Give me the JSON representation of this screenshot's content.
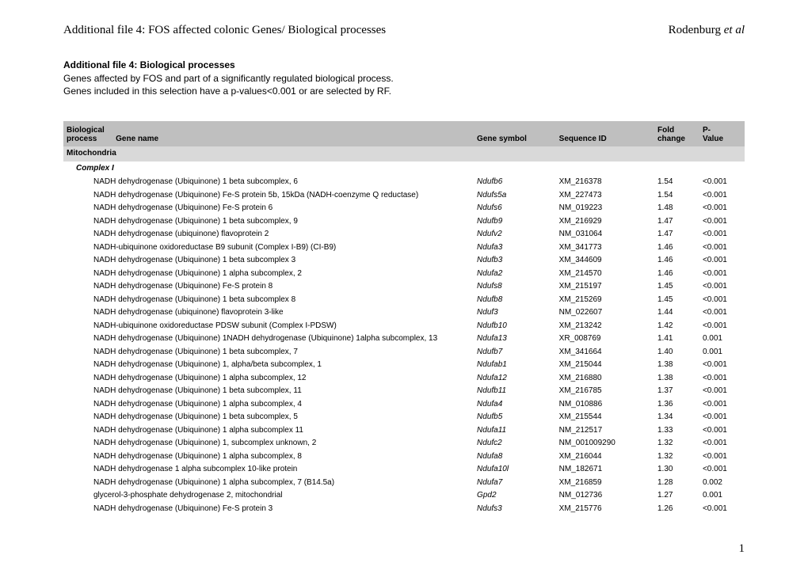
{
  "header": {
    "left": "Additional file 4: FOS affected colonic Genes/ Biological processes",
    "author": "Rodenburg ",
    "etal": "et al"
  },
  "section": {
    "title": "Additional file 4: Biological processes",
    "desc_line1": "Genes affected by FOS and part of a significantly regulated biological process.",
    "desc_line2": "Genes included in this selection have a p-values<0.001 or are selected by RF."
  },
  "columns": {
    "process_l1": "Biological",
    "process_l2": "process",
    "gene_name": "Gene name",
    "symbol": "Gene symbol",
    "seqid": "Sequence ID",
    "fold_l1": "Fold",
    "fold_l2": "change",
    "pval_l1": "P-",
    "pval_l2": "Value"
  },
  "group": "Mitochondria",
  "subgroup": "Complex I",
  "rows": [
    {
      "name": "NADH dehydrogenase (Ubiquinone) 1 beta subcomplex, 6",
      "sym": "Ndufb6",
      "seq": "XM_216378",
      "fold": "1.54",
      "p": "<0.001"
    },
    {
      "name": "NADH dehydrogenase (Ubiquinone) Fe-S protein 5b, 15kDa (NADH-coenzyme Q reductase)",
      "sym": "Ndufs5a",
      "seq": "XM_227473",
      "fold": "1.54",
      "p": "<0.001"
    },
    {
      "name": "NADH dehydrogenase (Ubiquinone) Fe-S protein 6",
      "sym": "Ndufs6",
      "seq": "NM_019223",
      "fold": "1.48",
      "p": "<0.001"
    },
    {
      "name": "NADH dehydrogenase (Ubiquinone) 1 beta subcomplex, 9",
      "sym": "Ndufb9",
      "seq": "XM_216929",
      "fold": "1.47",
      "p": "<0.001"
    },
    {
      "name": "NADH dehydrogenase (ubiquinone) flavoprotein 2",
      "sym": "Ndufv2",
      "seq": "NM_031064",
      "fold": "1.47",
      "p": "<0.001"
    },
    {
      "name": "NADH-ubiquinone oxidoreductase B9 subunit (Complex I-B9) (CI-B9)",
      "sym": "Ndufa3",
      "seq": "XM_341773",
      "fold": "1.46",
      "p": "<0.001"
    },
    {
      "name": "NADH dehydrogenase (Ubiquinone) 1 beta subcomplex 3",
      "sym": "Ndufb3",
      "seq": "XM_344609",
      "fold": "1.46",
      "p": "<0.001"
    },
    {
      "name": "NADH dehydrogenase (Ubiquinone) 1 alpha subcomplex, 2",
      "sym": "Ndufa2",
      "seq": "XM_214570",
      "fold": "1.46",
      "p": "<0.001"
    },
    {
      "name": "NADH dehydrogenase (Ubiquinone) Fe-S protein 8",
      "sym": "Ndufs8",
      "seq": "XM_215197",
      "fold": "1.45",
      "p": "<0.001"
    },
    {
      "name": "NADH dehydrogenase (Ubiquinone) 1 beta subcomplex 8",
      "sym": "Ndufb8",
      "seq": "XM_215269",
      "fold": "1.45",
      "p": "<0.001"
    },
    {
      "name": "NADH dehydrogenase (ubiquinone) flavoprotein 3-like",
      "sym": "Nduf3",
      "seq": "NM_022607",
      "fold": "1.44",
      "p": "<0.001"
    },
    {
      "name": "NADH-ubiquinone oxidoreductase PDSW subunit (Complex I-PDSW)",
      "sym": "Ndufb10",
      "seq": "XM_213242",
      "fold": "1.42",
      "p": "<0.001"
    },
    {
      "name": "NADH dehydrogenase (Ubiquinone) 1NADH dehydrogenase (Ubiquinone) 1alpha subcomplex, 13",
      "sym": "Ndufa13",
      "seq": "XR_008769",
      "fold": "1.41",
      "p": "0.001"
    },
    {
      "name": "NADH dehydrogenase (Ubiquinone) 1 beta subcomplex, 7",
      "sym": "Ndufb7",
      "seq": "XM_341664",
      "fold": "1.40",
      "p": "0.001"
    },
    {
      "name": "NADH dehydrogenase (Ubiquinone) 1, alpha/beta subcomplex, 1",
      "sym": "Ndufab1",
      "seq": "XM_215044",
      "fold": "1.38",
      "p": "<0.001"
    },
    {
      "name": "NADH dehydrogenase (Ubiquinone) 1 alpha subcomplex, 12",
      "sym": "Ndufa12",
      "seq": "XM_216880",
      "fold": "1.38",
      "p": "<0.001"
    },
    {
      "name": "NADH dehydrogenase (Ubiquinone) 1 beta subcomplex, 11",
      "sym": "Ndufb11",
      "seq": "XM_216785",
      "fold": "1.37",
      "p": "<0.001"
    },
    {
      "name": "NADH dehydrogenase (Ubiquinone) 1 alpha subcomplex, 4",
      "sym": "Ndufa4",
      "seq": "NM_010886",
      "fold": "1.36",
      "p": "<0.001"
    },
    {
      "name": "NADH dehydrogenase (Ubiquinone) 1 beta subcomplex, 5",
      "sym": "Ndufb5",
      "seq": "XM_215544",
      "fold": "1.34",
      "p": "<0.001"
    },
    {
      "name": "NADH dehydrogenase (Ubiquinone) 1 alpha subcomplex 11",
      "sym": "Ndufa11",
      "seq": "NM_212517",
      "fold": "1.33",
      "p": "<0.001"
    },
    {
      "name": "NADH dehydrogenase (Ubiquinone) 1, subcomplex unknown, 2",
      "sym": "Ndufc2",
      "seq": "NM_001009290",
      "fold": "1.32",
      "p": "<0.001"
    },
    {
      "name": "NADH dehydrogenase (Ubiquinone) 1 alpha subcomplex, 8",
      "sym": "Ndufa8",
      "seq": "XM_216044",
      "fold": "1.32",
      "p": "<0.001"
    },
    {
      "name": "NADH dehydrogenase 1 alpha subcomplex 10-like protein",
      "sym": "Ndufa10l",
      "seq": "NM_182671",
      "fold": "1.30",
      "p": "<0.001"
    },
    {
      "name": "NADH dehydrogenase (Ubiquinone) 1 alpha subcomplex, 7 (B14.5a)",
      "sym": "Ndufa7",
      "seq": "XM_216859",
      "fold": "1.28",
      "p": "0.002"
    },
    {
      "name": "glycerol-3-phosphate dehydrogenase 2, mitochondrial",
      "sym": "Gpd2",
      "seq": "NM_012736",
      "fold": "1.27",
      "p": "0.001"
    },
    {
      "name": "NADH dehydrogenase (Ubiquinone) Fe-S protein 3",
      "sym": "Ndufs3",
      "seq": "XM_215776",
      "fold": "1.26",
      "p": "<0.001"
    }
  ],
  "page_number": "1"
}
